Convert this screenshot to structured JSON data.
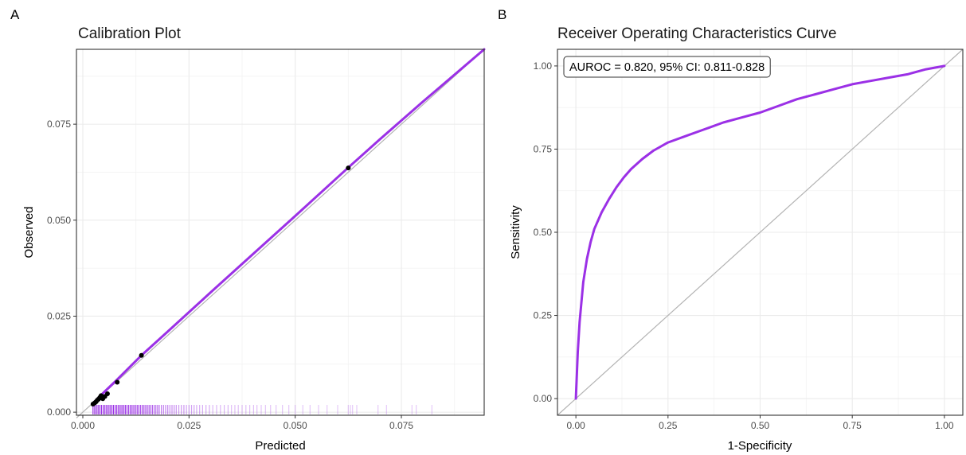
{
  "chart_data": [
    {
      "panel_label": "A",
      "type": "line",
      "title": "Calibration Plot",
      "xlabel": "Predicted",
      "ylabel": "Observed",
      "xlim": [
        -0.0015,
        0.0945
      ],
      "ylim": [
        -0.0008,
        0.0945
      ],
      "xticks": [
        0.0,
        0.025,
        0.05,
        0.075
      ],
      "xtick_labels": [
        "0.000",
        "0.025",
        "0.050",
        "0.075"
      ],
      "yticks": [
        0.0,
        0.025,
        0.05,
        0.075
      ],
      "ytick_labels": [
        "0.000",
        "0.025",
        "0.050",
        "0.075"
      ],
      "grid": true,
      "reference_line": {
        "x": [
          -0.0015,
          0.0945
        ],
        "y": [
          -0.0015,
          0.0945
        ],
        "color": "#b3b3b3"
      },
      "series": [
        {
          "kind": "line",
          "color": "#9b30e6",
          "x": [
            0.0022,
            0.003,
            0.004,
            0.005,
            0.008,
            0.014,
            0.02,
            0.03,
            0.04,
            0.05,
            0.0625,
            0.07,
            0.08,
            0.0945
          ],
          "y": [
            0.0022,
            0.003,
            0.0041,
            0.0052,
            0.0084,
            0.015,
            0.021,
            0.0311,
            0.0411,
            0.0511,
            0.0637,
            0.0711,
            0.0808,
            0.0945
          ]
        },
        {
          "kind": "scatter",
          "color": "#000000",
          "x": [
            0.0024,
            0.0028,
            0.0031,
            0.0034,
            0.0037,
            0.004,
            0.0043,
            0.0047,
            0.0052,
            0.0058,
            0.0081,
            0.0138,
            0.0625
          ],
          "y": [
            0.0021,
            0.0024,
            0.0027,
            0.0031,
            0.0034,
            0.0038,
            0.0043,
            0.0035,
            0.0041,
            0.0048,
            0.0078,
            0.0148,
            0.0636
          ]
        }
      ],
      "rug": {
        "color": "#9b30e6",
        "x": [
          0.0024,
          0.0028,
          0.0032,
          0.0036,
          0.004,
          0.0044,
          0.0048,
          0.0052,
          0.0056,
          0.006,
          0.0064,
          0.0068,
          0.0072,
          0.0076,
          0.008,
          0.0084,
          0.0088,
          0.0092,
          0.0096,
          0.01,
          0.0104,
          0.0108,
          0.0112,
          0.0116,
          0.012,
          0.0124,
          0.0128,
          0.0132,
          0.0136,
          0.014,
          0.0144,
          0.0148,
          0.0152,
          0.0156,
          0.016,
          0.0164,
          0.0168,
          0.0172,
          0.0176,
          0.018,
          0.0185,
          0.019,
          0.0195,
          0.02,
          0.0205,
          0.021,
          0.0215,
          0.022,
          0.0226,
          0.0232,
          0.0238,
          0.0244,
          0.025,
          0.0256,
          0.0262,
          0.0268,
          0.0275,
          0.0282,
          0.029,
          0.0298,
          0.0306,
          0.0315,
          0.0324,
          0.0333,
          0.0342,
          0.035,
          0.0358,
          0.0366,
          0.0375,
          0.0384,
          0.0393,
          0.0402,
          0.041,
          0.042,
          0.043,
          0.0442,
          0.0455,
          0.047,
          0.0485,
          0.05,
          0.0518,
          0.0535,
          0.0555,
          0.0575,
          0.06,
          0.0625,
          0.063,
          0.0635,
          0.0645,
          0.0695,
          0.0715,
          0.0775,
          0.0785,
          0.0822
        ],
        "opacity": [
          1,
          1,
          1,
          1,
          1,
          1,
          1,
          1,
          1,
          1,
          1,
          1,
          1,
          1,
          1,
          1,
          1,
          1,
          1,
          1,
          0.95,
          0.95,
          0.95,
          0.95,
          0.9,
          0.9,
          0.9,
          0.9,
          0.85,
          0.85,
          0.85,
          0.8,
          0.8,
          0.8,
          0.75,
          0.75,
          0.7,
          0.7,
          0.7,
          0.65,
          0.65,
          0.6,
          0.6,
          0.6,
          0.55,
          0.55,
          0.55,
          0.5,
          0.5,
          0.5,
          0.5,
          0.45,
          0.45,
          0.45,
          0.45,
          0.4,
          0.4,
          0.4,
          0.4,
          0.4,
          0.35,
          0.35,
          0.35,
          0.35,
          0.35,
          0.3,
          0.3,
          0.3,
          0.3,
          0.3,
          0.3,
          0.3,
          0.3,
          0.28,
          0.28,
          0.28,
          0.28,
          0.28,
          0.26,
          0.26,
          0.26,
          0.26,
          0.26,
          0.25,
          0.25,
          0.25,
          0.25,
          0.25,
          0.25,
          0.25,
          0.25,
          0.25,
          0.25,
          0.25
        ]
      }
    },
    {
      "panel_label": "B",
      "type": "line",
      "title": "Receiver Operating Characteristics Curve",
      "xlabel": "1-Specificity",
      "ylabel": "Sensitivity",
      "xlim": [
        -0.05,
        1.05
      ],
      "ylim": [
        -0.05,
        1.05
      ],
      "xticks": [
        0.0,
        0.25,
        0.5,
        0.75,
        1.0
      ],
      "xtick_labels": [
        "0.00",
        "0.25",
        "0.50",
        "0.75",
        "1.00"
      ],
      "yticks": [
        0.0,
        0.25,
        0.5,
        0.75,
        1.0
      ],
      "ytick_labels": [
        "0.00",
        "0.25",
        "0.50",
        "0.75",
        "1.00"
      ],
      "grid": true,
      "reference_line": {
        "x": [
          -0.05,
          1.05
        ],
        "y": [
          -0.05,
          1.05
        ],
        "color": "#b3b3b3"
      },
      "annotation": "AUROC = 0.820, 95% CI: 0.811-0.828",
      "series": [
        {
          "kind": "line",
          "color": "#9b30e6",
          "x": [
            0.0,
            0.005,
            0.01,
            0.02,
            0.03,
            0.04,
            0.05,
            0.07,
            0.09,
            0.11,
            0.13,
            0.15,
            0.18,
            0.21,
            0.25,
            0.3,
            0.35,
            0.4,
            0.45,
            0.5,
            0.55,
            0.6,
            0.65,
            0.7,
            0.75,
            0.8,
            0.85,
            0.9,
            0.95,
            1.0
          ],
          "y": [
            0.0,
            0.14,
            0.23,
            0.35,
            0.42,
            0.47,
            0.51,
            0.56,
            0.6,
            0.635,
            0.665,
            0.69,
            0.72,
            0.745,
            0.77,
            0.79,
            0.81,
            0.83,
            0.845,
            0.86,
            0.88,
            0.9,
            0.915,
            0.93,
            0.945,
            0.955,
            0.965,
            0.975,
            0.99,
            1.0
          ]
        }
      ]
    }
  ]
}
